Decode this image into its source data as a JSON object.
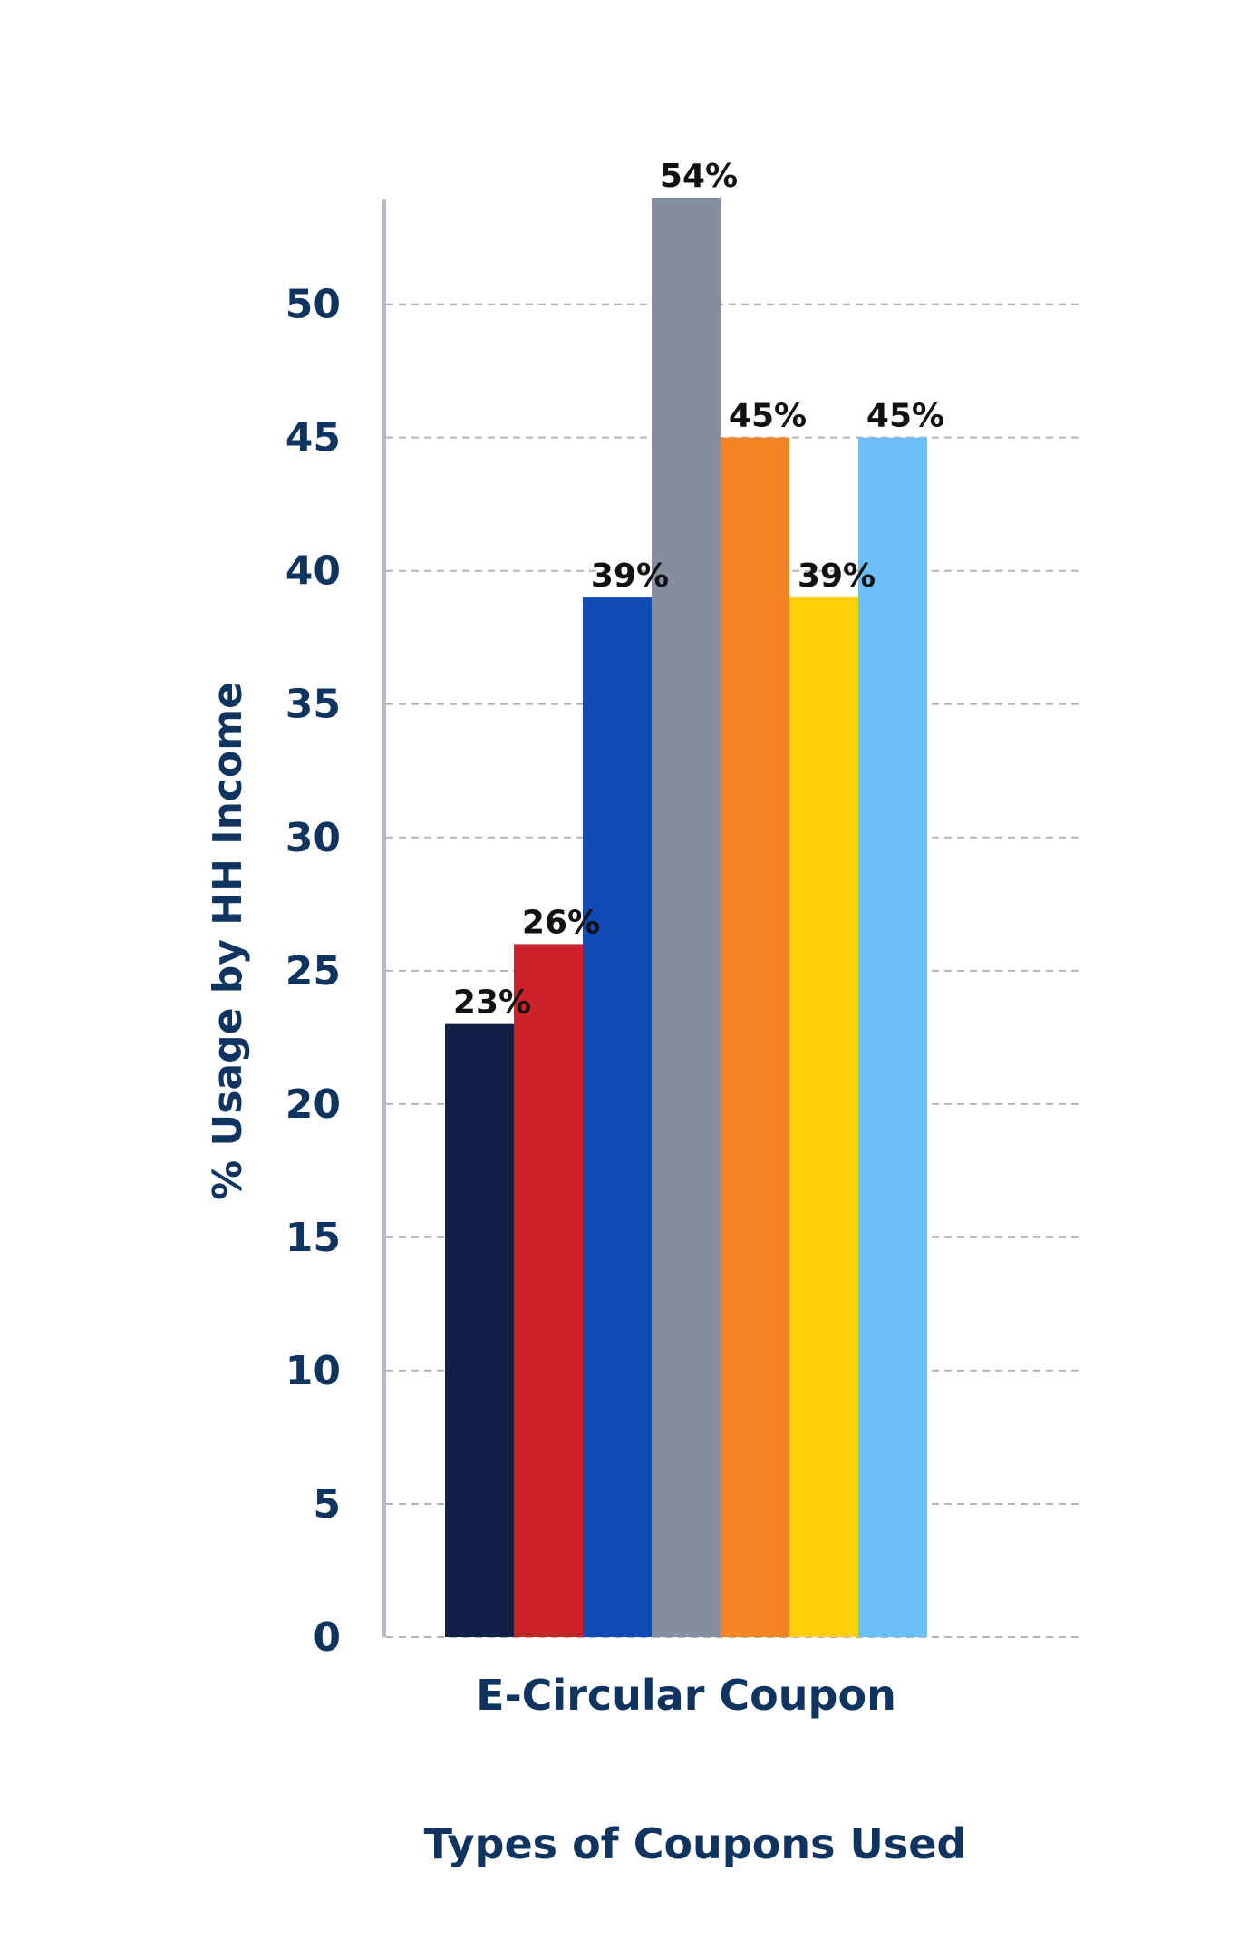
{
  "chart_data": {
    "type": "bar",
    "categories": [
      "E-Circular Coupon"
    ],
    "series": [
      {
        "values": [
          23
        ],
        "color": "#141f48"
      },
      {
        "values": [
          26
        ],
        "color": "#cc232b"
      },
      {
        "values": [
          39
        ],
        "color": "#0f4ab5"
      },
      {
        "values": [
          54
        ],
        "color": "#858da1"
      },
      {
        "values": [
          45
        ],
        "color": "#f48323"
      },
      {
        "values": [
          39
        ],
        "color": "#fece07"
      },
      {
        "values": [
          45
        ],
        "color": "#6bbff6"
      }
    ],
    "data_labels": [
      "23%",
      "26%",
      "39%",
      "54%",
      "45%",
      "39%",
      "45%"
    ],
    "title": "",
    "xlabel": "Types of Coupons Used",
    "ylabel": "% Usage by HH Income",
    "ylim": [
      0,
      54
    ],
    "yticks": [
      0,
      5,
      10,
      15,
      20,
      25,
      30,
      35,
      40,
      45,
      50
    ],
    "ytick_labels": [
      "0",
      "5",
      "10",
      "15",
      "20",
      "25",
      "30",
      "35",
      "40",
      "45",
      "50"
    ],
    "grid": "horizontal dashed",
    "legend": "none",
    "colors": {
      "text": "#0f3460",
      "grid": "#b5b5b5",
      "axis": "#b9b9c3"
    }
  }
}
